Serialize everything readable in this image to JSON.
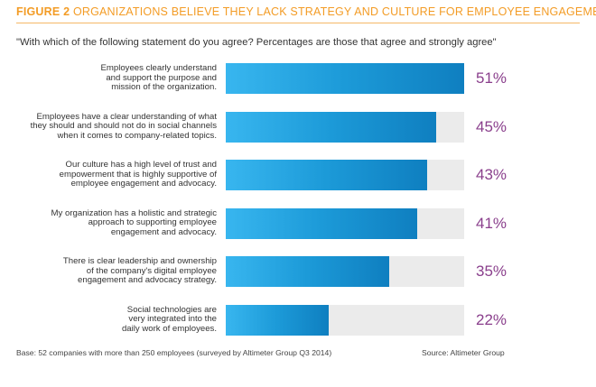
{
  "header": {
    "figure_label": "FIGURE 2",
    "title": "ORGANIZATIONS BELIEVE THEY LACK STRATEGY AND CULTURE FOR EMPLOYEE ENGAGEMENT"
  },
  "question": "\"With which of the following statement do you agree? Percentages are those that agree and strongly agree\"",
  "chart_data": {
    "type": "bar",
    "orientation": "horizontal",
    "title": "ORGANIZATIONS BELIEVE THEY LACK STRATEGY AND CULTURE FOR EMPLOYEE ENGAGEMENT",
    "xlim": [
      0,
      51
    ],
    "categories": [
      "Employees clearly understand and support the purpose and mission of the organization.",
      "Employees have a clear understanding of what they should and should not do in social channels when it comes to company-related topics.",
      "Our culture has a high level of trust and empowerment that is highly supportive of employee engagement and advocacy.",
      "My organization has a holistic and strategic approach to supporting employee engagement and advocacy.",
      "There is clear leadership and ownership of the company's digital employee engagement and advocacy strategy.",
      "Social technologies are very integrated into the daily work of employees."
    ],
    "label_lines": [
      [
        "Employees clearly understand",
        "and support the purpose and",
        "mission of the organization."
      ],
      [
        "Employees have a clear understanding of what",
        "they should and should not do in social channels",
        "when it comes to company-related topics."
      ],
      [
        "Our culture has a high level of trust and",
        "empowerment that is highly supportive of",
        "employee engagement and advocacy."
      ],
      [
        "My organization has a holistic and strategic",
        "approach to supporting employee",
        "engagement and advocacy."
      ],
      [
        "There is clear leadership and ownership",
        "of the company's digital employee",
        "engagement and advocacy strategy."
      ],
      [
        "Social technologies are",
        "very integrated into the",
        "daily work of employees."
      ]
    ],
    "values": [
      51,
      45,
      43,
      41,
      35,
      22
    ],
    "value_labels": [
      "51%",
      "45%",
      "43%",
      "41%",
      "35%",
      "22%"
    ],
    "colors": {
      "bar": "#1c9ad8",
      "track": "#ebebeb",
      "value_text": "#8a3f8c",
      "title": "#f39c26"
    }
  },
  "footer": {
    "base": "Base: 52 companies with more than 250 employees (surveyed by Altimeter Group Q3 2014)",
    "source": "Source: Altimeter Group"
  }
}
